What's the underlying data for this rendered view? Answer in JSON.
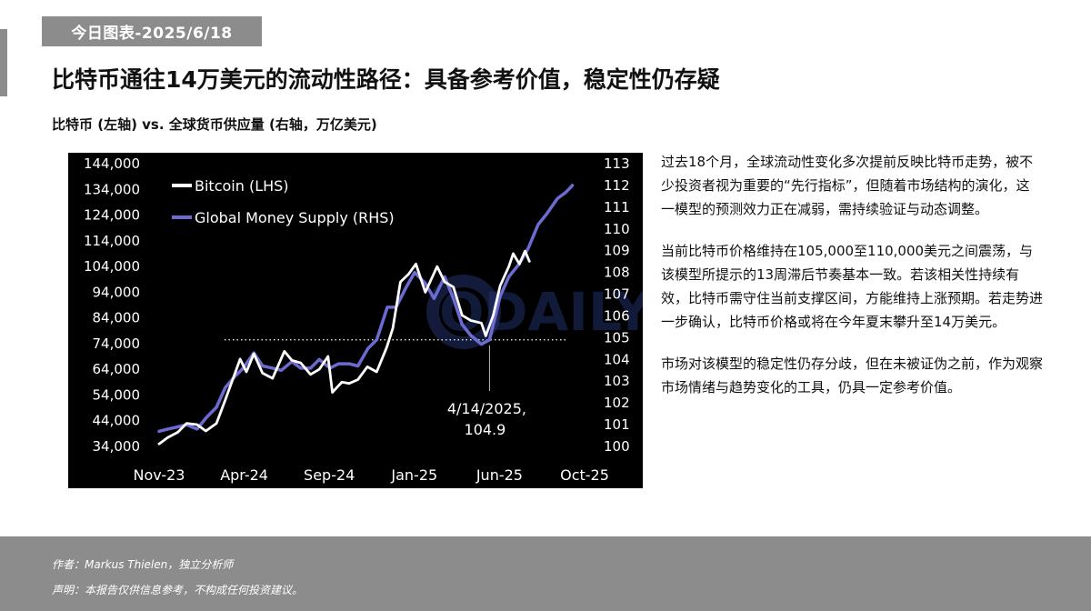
{
  "header": {
    "date_badge": "今日图表-2025/6/18",
    "title": "比特币通往14万美元的流动性路径：具备参考价值，稳定性仍存疑",
    "subtitle": "比特币 (左轴) vs. 全球货币供应量 (右轴，万亿美元)"
  },
  "commentary": {
    "paragraphs": [
      "过去18个月，全球流动性变化多次提前反映比特币走势，被不少投资者视为重要的“先行指标”，但随着市场结构的演化，这一模型的预测效力正在减弱，需持续验证与动态调整。",
      "当前比特币价格维持在105,000至110,000美元之间震荡，与该模型所提示的13周滞后节奏基本一致。若该相关性持续有效，比特币需守住当前支撑区间，方能维持上涨预期。若走势进一步确认，比特币价格或将在今年夏末攀升至14万美元。",
      "市场对该模型的稳定性仍存分歧，但在未被证伪之前，作为观察市场情绪与趋势变化的工具，仍具一定参考价值。"
    ]
  },
  "footer": {
    "author": "作者：Markus Thielen，独立分析师",
    "disclaimer": "声明：本报告仅供信息参考，不构成任何投资建议。"
  },
  "watermark": {
    "text": "ODAILY"
  },
  "colors": {
    "background": "#000000",
    "bitcoin": "#ffffff",
    "money_supply": "#6b6bd1",
    "badge": "#8c8c8c"
  },
  "chart_data": {
    "type": "line",
    "x_ticks": [
      "Nov-23",
      "Apr-24",
      "Sep-24",
      "Jan-25",
      "Jun-25",
      "Oct-25"
    ],
    "x_range": [
      "2023-11",
      "2025-10"
    ],
    "y_left_ticks": [
      "144,000",
      "134,000",
      "124,000",
      "114,000",
      "104,000",
      "94,000",
      "84,000",
      "74,000",
      "64,000",
      "54,000",
      "44,000",
      "34,000"
    ],
    "y_left_range": [
      34000,
      144000
    ],
    "y_right_ticks": [
      "113",
      "112",
      "111",
      "110",
      "109",
      "108",
      "107",
      "106",
      "105",
      "104",
      "103",
      "102",
      "101",
      "100"
    ],
    "y_right_range": [
      100,
      113
    ],
    "legend_position": "top-left",
    "grid": false,
    "reference_line": {
      "axis": "right",
      "value": 104.9,
      "style": "dotted"
    },
    "annotation": {
      "date_label": "4/14/2025,",
      "value_label": "104.9",
      "x": "2025-04-14",
      "y": 104.9
    },
    "series": [
      {
        "name": "Bitcoin (LHS)",
        "axis": "left",
        "x": [
          "2023-11-01",
          "2023-11-15",
          "2023-12-01",
          "2023-12-15",
          "2024-01-01",
          "2024-01-15",
          "2024-02-01",
          "2024-02-15",
          "2024-03-01",
          "2024-03-10",
          "2024-03-20",
          "2024-04-01",
          "2024-04-15",
          "2024-05-01",
          "2024-05-20",
          "2024-06-01",
          "2024-06-15",
          "2024-07-01",
          "2024-07-15",
          "2024-07-29",
          "2024-08-05",
          "2024-08-20",
          "2024-09-01",
          "2024-09-15",
          "2024-09-30",
          "2024-10-15",
          "2024-10-31",
          "2024-11-10",
          "2024-11-22",
          "2024-12-05",
          "2024-12-17",
          "2025-01-01",
          "2025-01-20",
          "2025-02-01",
          "2025-02-15",
          "2025-03-01",
          "2025-03-15",
          "2025-04-01",
          "2025-04-08",
          "2025-04-20",
          "2025-05-01",
          "2025-05-15",
          "2025-05-22",
          "2025-06-01",
          "2025-06-10",
          "2025-06-17"
        ],
        "y": [
          35000,
          37500,
          39500,
          43000,
          42500,
          40000,
          43000,
          52000,
          62000,
          68000,
          63000,
          70000,
          62500,
          60500,
          71000,
          67500,
          66500,
          62000,
          64000,
          69000,
          55000,
          59000,
          58500,
          60000,
          65000,
          63000,
          72500,
          80000,
          98000,
          101000,
          105000,
          94000,
          104000,
          98000,
          96000,
          85000,
          83000,
          82000,
          77000,
          85000,
          96500,
          104000,
          109000,
          105000,
          110000,
          106000
        ]
      },
      {
        "name": "Global Money Supply (RHS)",
        "axis": "right",
        "x": [
          "2023-11-01",
          "2023-11-15",
          "2023-12-01",
          "2023-12-15",
          "2024-01-01",
          "2024-01-15",
          "2024-02-01",
          "2024-02-15",
          "2024-03-01",
          "2024-03-15",
          "2024-04-01",
          "2024-04-15",
          "2024-05-01",
          "2024-05-15",
          "2024-06-01",
          "2024-06-15",
          "2024-07-01",
          "2024-07-15",
          "2024-08-01",
          "2024-08-15",
          "2024-09-01",
          "2024-09-15",
          "2024-10-01",
          "2024-10-15",
          "2024-11-01",
          "2024-11-15",
          "2024-12-01",
          "2024-12-15",
          "2025-01-01",
          "2025-01-15",
          "2025-02-01",
          "2025-02-15",
          "2025-03-01",
          "2025-03-15",
          "2025-04-01",
          "2025-04-14",
          "2025-05-01",
          "2025-05-15",
          "2025-06-01",
          "2025-06-15",
          "2025-07-01",
          "2025-07-15",
          "2025-08-01",
          "2025-08-15",
          "2025-08-25"
        ],
        "y": [
          100.7,
          100.8,
          100.9,
          101.0,
          100.8,
          101.3,
          101.8,
          102.7,
          103.2,
          103.6,
          104.3,
          103.7,
          103.6,
          103.5,
          103.9,
          103.6,
          103.6,
          104.0,
          103.6,
          103.8,
          103.8,
          103.7,
          104.5,
          104.9,
          106.4,
          106.4,
          107.3,
          108.0,
          107.5,
          106.8,
          107.8,
          106.8,
          105.6,
          105.1,
          104.7,
          104.9,
          106.9,
          107.8,
          108.4,
          109.1,
          110.2,
          110.7,
          111.4,
          111.7,
          112.0
        ]
      }
    ]
  }
}
